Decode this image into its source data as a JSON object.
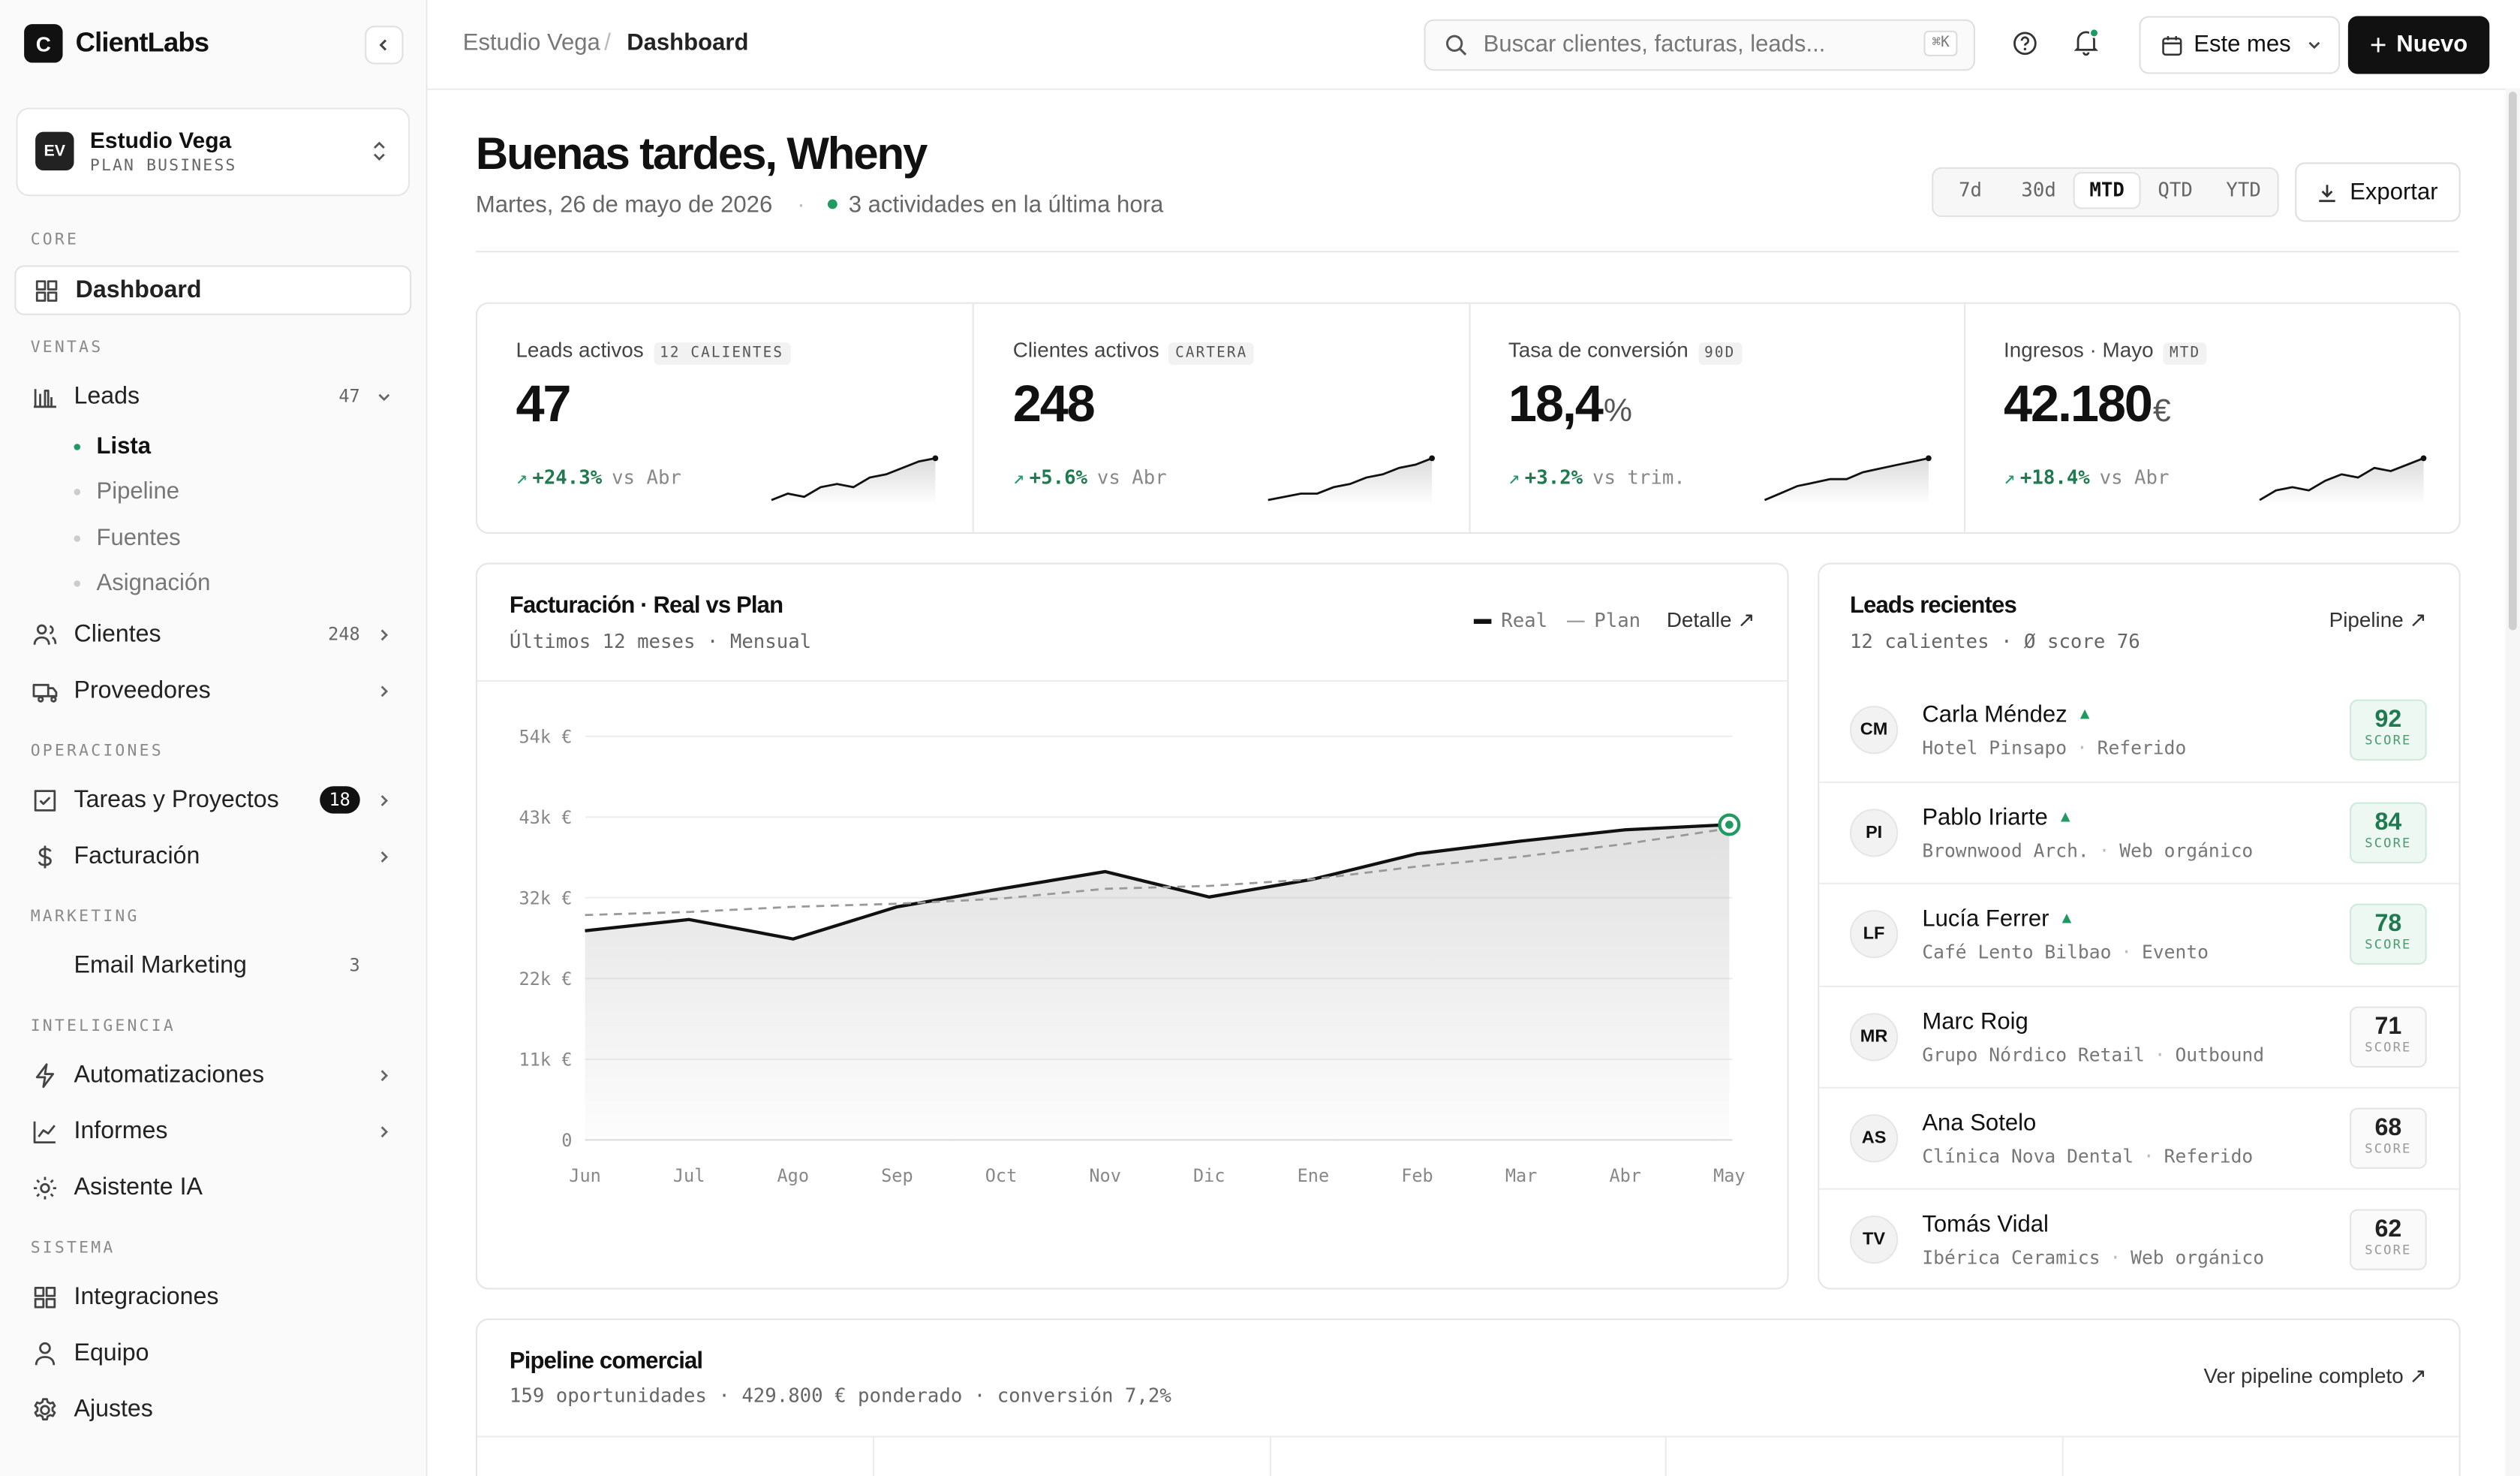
{
  "sidebar": {
    "brand_initial": "C",
    "brand": "ClientLabs",
    "workspace": {
      "initials": "EV",
      "name": "Estudio Vega",
      "plan": "PLAN BUSINESS"
    },
    "sections": [
      {
        "title": "CORE",
        "items": [
          {
            "label": "Dashboard",
            "active": true
          }
        ]
      },
      {
        "title": "VENTAS",
        "items": [
          {
            "label": "Leads",
            "badge": 47,
            "expanded": true,
            "children": [
              {
                "label": "Lista",
                "active": true
              },
              {
                "label": "Pipeline"
              },
              {
                "label": "Fuentes"
              },
              {
                "label": "Asignación"
              }
            ]
          },
          {
            "label": "Clientes",
            "badge": 248,
            "expandable": true
          },
          {
            "label": "Proveedores",
            "expandable": true
          }
        ]
      },
      {
        "title": "OPERACIONES",
        "items": [
          {
            "label": "Tareas y Proyectos",
            "badge": 18,
            "badge_dark": true,
            "expandable": true
          },
          {
            "label": "Facturación",
            "expandable": true
          }
        ]
      },
      {
        "title": "MARKETING",
        "items": [
          {
            "label": "Email Marketing",
            "badge": 3
          }
        ]
      },
      {
        "title": "INTELIGENCIA",
        "items": [
          {
            "label": "Automatizaciones",
            "expandable": true
          },
          {
            "label": "Informes",
            "expandable": true
          },
          {
            "label": "Asistente IA"
          }
        ]
      },
      {
        "title": "SISTEMA",
        "items": [
          {
            "label": "Integraciones"
          },
          {
            "label": "Equipo"
          },
          {
            "label": "Ajustes"
          }
        ]
      }
    ]
  },
  "topbar": {
    "breadcrumb": [
      "Estudio Vega",
      "Dashboard"
    ],
    "search_placeholder": "Buscar clientes, facturas, leads...",
    "shortcut": "⌘K",
    "period": "Este mes",
    "new_button": "Nuevo"
  },
  "header": {
    "greeting": "Buenas tardes, Wheny",
    "date": "Martes, 26 de mayo de 2026",
    "activity": "3 actividades en la última hora",
    "ranges": [
      "7d",
      "30d",
      "MTD",
      "QTD",
      "YTD"
    ],
    "active_range": 2,
    "export": "Exportar"
  },
  "kpis": [
    {
      "label": "Leads activos",
      "tag": "12 CALIENTES",
      "value": "47",
      "delta": "+24.3%",
      "compare": "vs Abr",
      "trend": [
        10,
        12,
        11,
        14,
        15,
        14,
        17,
        18,
        20,
        22,
        23
      ]
    },
    {
      "label": "Clientes activos",
      "tag": "CARTERA",
      "value": "248",
      "delta": "+5.6%",
      "compare": "vs Abr",
      "trend": [
        10,
        11,
        12,
        12,
        14,
        15,
        17,
        18,
        20,
        21,
        23
      ]
    },
    {
      "label": "Tasa de conversión",
      "tag": "90D",
      "value": "18,4",
      "unit": "%",
      "delta": "+3.2%",
      "compare": "vs trim.",
      "trend": [
        10,
        12,
        14,
        15,
        16,
        16,
        18,
        19,
        20,
        21,
        22
      ]
    },
    {
      "label": "Ingresos · Mayo",
      "tag": "MTD",
      "value": "42.180",
      "unit": "€",
      "delta": "+18.4%",
      "compare": "vs Abr",
      "trend": [
        10,
        13,
        14,
        13,
        16,
        18,
        17,
        20,
        19,
        21,
        23
      ]
    }
  ],
  "revenue_chart": {
    "type": "line",
    "title": "Facturación · Real vs Plan",
    "subtitle": "Últimos 12 meses · Mensual",
    "detail": "Detalle",
    "categories": [
      "Jun",
      "Jul",
      "Ago",
      "Sep",
      "Oct",
      "Nov",
      "Dic",
      "Ene",
      "Feb",
      "Mar",
      "Abr",
      "May"
    ],
    "series": [
      {
        "name": "Real",
        "color": "#111111",
        "values": [
          28000,
          29500,
          26900,
          31200,
          33600,
          35900,
          32500,
          34900,
          38300,
          40000,
          41500,
          42180
        ]
      },
      {
        "name": "Plan",
        "color": "#999999",
        "dashed": true,
        "values": [
          30100,
          30500,
          31200,
          31600,
          32300,
          33600,
          34000,
          34900,
          36600,
          37900,
          39600,
          41700
        ]
      }
    ],
    "ylim": [
      0,
      54000
    ],
    "yticks": [
      {
        "value": 0,
        "label": "0"
      },
      {
        "value": 10800,
        "label": "11k €"
      },
      {
        "value": 21600,
        "label": "22k €"
      },
      {
        "value": 32400,
        "label": "32k €"
      },
      {
        "value": 43200,
        "label": "43k €"
      },
      {
        "value": 54000,
        "label": "54k €"
      }
    ],
    "grid": true
  },
  "leads_panel": {
    "title": "Leads recientes",
    "subtitle": "12 calientes · Ø score 76",
    "link": "Pipeline",
    "score_label": "SCORE",
    "leads": [
      {
        "initials": "CM",
        "name": "Carla Méndez",
        "company": "Hotel Pinsapo",
        "source": "Referido",
        "score": 92,
        "trending": true
      },
      {
        "initials": "PI",
        "name": "Pablo Iriarte",
        "company": "Brownwood Arch.",
        "source": "Web orgánico",
        "score": 84,
        "trending": true
      },
      {
        "initials": "LF",
        "name": "Lucía Ferrer",
        "company": "Café Lento Bilbao",
        "source": "Evento",
        "score": 78,
        "trending": true
      },
      {
        "initials": "MR",
        "name": "Marc Roig",
        "company": "Grupo Nórdico Retail",
        "source": "Outbound",
        "score": 71,
        "trending": false
      },
      {
        "initials": "AS",
        "name": "Ana Sotelo",
        "company": "Clínica Nova Dental",
        "source": "Referido",
        "score": 68,
        "trending": false
      },
      {
        "initials": "TV",
        "name": "Tomás Vidal",
        "company": "Ibérica Ceramics",
        "source": "Web orgánico",
        "score": 62,
        "trending": false
      }
    ]
  },
  "pipeline": {
    "title": "Pipeline comercial",
    "summary": "159 oportunidades · 429.800 € ponderado · conversión 7,2%",
    "link": "Ver pipeline completo"
  }
}
